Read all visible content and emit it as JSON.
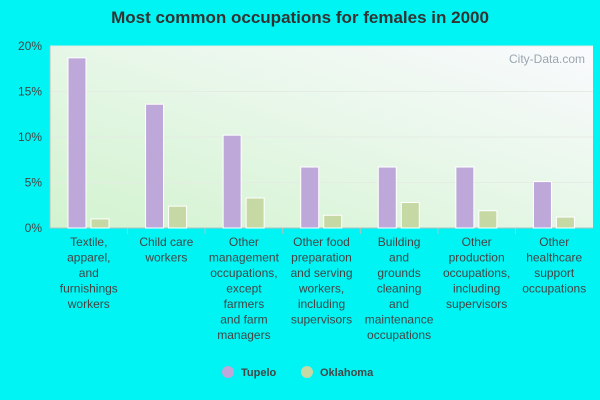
{
  "chart_data": {
    "type": "bar",
    "title": "Most common occupations for females in 2000",
    "xlabel": "",
    "ylabel": "",
    "ylim": [
      0,
      20
    ],
    "yticks": [
      0,
      5,
      10,
      15,
      20
    ],
    "ytick_labels": [
      "0%",
      "5%",
      "10%",
      "15%",
      "20%"
    ],
    "grid": true,
    "legend_position": "bottom",
    "categories": [
      "Textile, apparel, and furnishings workers",
      "Child care workers",
      "Other management occupations, except farmers and farm managers",
      "Other food preparation and serving workers, including supervisors",
      "Building and grounds cleaning and maintenance occupations",
      "Other production occupations, including supervisors",
      "Other healthcare support occupations"
    ],
    "category_label_lines": [
      [
        "Textile,",
        "apparel,",
        "and",
        "furnishings",
        "workers"
      ],
      [
        "Child care",
        "workers"
      ],
      [
        "Other",
        "management",
        "occupations,",
        "except",
        "farmers",
        "and farm",
        "managers"
      ],
      [
        "Other food",
        "preparation",
        "and serving",
        "workers,",
        "including",
        "supervisors"
      ],
      [
        "Building",
        "and",
        "grounds",
        "cleaning",
        "and",
        "maintenance",
        "occupations"
      ],
      [
        "Other",
        "production",
        "occupations,",
        "including",
        "supervisors"
      ],
      [
        "Other",
        "healthcare",
        "support",
        "occupations"
      ]
    ],
    "series": [
      {
        "name": "Tupelo",
        "color": "#bea8d9",
        "values": [
          18.7,
          13.6,
          10.2,
          6.7,
          6.7,
          6.7,
          5.1
        ]
      },
      {
        "name": "Oklahoma",
        "color": "#c6d9a5",
        "values": [
          1.0,
          2.4,
          3.3,
          1.4,
          2.8,
          1.9,
          1.2
        ]
      }
    ],
    "watermark": "City-Data.com"
  }
}
